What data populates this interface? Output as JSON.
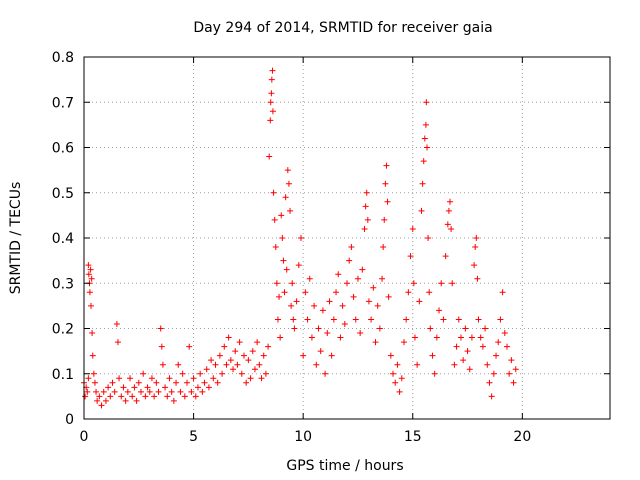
{
  "chart_data": {
    "type": "scatter",
    "title": "Day 294 of 2014, SRMTID for receiver gaia",
    "xlabel": "GPS time / hours",
    "ylabel": "SRMTID / TECUs",
    "xlim": [
      0,
      24
    ],
    "ylim": [
      0,
      0.8
    ],
    "xticks": [
      0,
      5,
      10,
      15,
      20
    ],
    "yticks": [
      0,
      0.1,
      0.2,
      0.3,
      0.4,
      0.5,
      0.6,
      0.7,
      0.8
    ],
    "grid": true,
    "marker": "plus",
    "color": "#ff0000",
    "series": [
      {
        "name": "SRMTID",
        "points": [
          [
            0.0,
            0.08
          ],
          [
            0.05,
            0.05
          ],
          [
            0.1,
            0.07
          ],
          [
            0.15,
            0.06
          ],
          [
            0.2,
            0.09
          ],
          [
            0.2,
            0.34
          ],
          [
            0.22,
            0.32
          ],
          [
            0.25,
            0.3
          ],
          [
            0.27,
            0.28
          ],
          [
            0.3,
            0.33
          ],
          [
            0.32,
            0.25
          ],
          [
            0.35,
            0.31
          ],
          [
            0.37,
            0.19
          ],
          [
            0.4,
            0.14
          ],
          [
            0.45,
            0.1
          ],
          [
            0.5,
            0.08
          ],
          [
            0.55,
            0.06
          ],
          [
            0.6,
            0.04
          ],
          [
            0.7,
            0.05
          ],
          [
            0.8,
            0.03
          ],
          [
            0.9,
            0.06
          ],
          [
            1.0,
            0.04
          ],
          [
            1.1,
            0.07
          ],
          [
            1.2,
            0.05
          ],
          [
            1.3,
            0.08
          ],
          [
            1.4,
            0.06
          ],
          [
            1.5,
            0.21
          ],
          [
            1.55,
            0.17
          ],
          [
            1.6,
            0.09
          ],
          [
            1.7,
            0.05
          ],
          [
            1.8,
            0.07
          ],
          [
            1.9,
            0.04
          ],
          [
            2.0,
            0.06
          ],
          [
            2.1,
            0.09
          ],
          [
            2.2,
            0.05
          ],
          [
            2.3,
            0.07
          ],
          [
            2.4,
            0.04
          ],
          [
            2.5,
            0.08
          ],
          [
            2.6,
            0.06
          ],
          [
            2.7,
            0.1
          ],
          [
            2.8,
            0.05
          ],
          [
            2.9,
            0.07
          ],
          [
            3.0,
            0.06
          ],
          [
            3.1,
            0.09
          ],
          [
            3.2,
            0.05
          ],
          [
            3.3,
            0.08
          ],
          [
            3.4,
            0.06
          ],
          [
            3.5,
            0.2
          ],
          [
            3.55,
            0.16
          ],
          [
            3.6,
            0.12
          ],
          [
            3.7,
            0.07
          ],
          [
            3.8,
            0.05
          ],
          [
            3.9,
            0.09
          ],
          [
            4.0,
            0.06
          ],
          [
            4.1,
            0.04
          ],
          [
            4.2,
            0.08
          ],
          [
            4.3,
            0.12
          ],
          [
            4.4,
            0.06
          ],
          [
            4.5,
            0.1
          ],
          [
            4.6,
            0.05
          ],
          [
            4.7,
            0.08
          ],
          [
            4.8,
            0.16
          ],
          [
            4.9,
            0.06
          ],
          [
            5.0,
            0.09
          ],
          [
            5.1,
            0.05
          ],
          [
            5.2,
            0.07
          ],
          [
            5.3,
            0.1
          ],
          [
            5.4,
            0.06
          ],
          [
            5.5,
            0.08
          ],
          [
            5.6,
            0.11
          ],
          [
            5.7,
            0.07
          ],
          [
            5.8,
            0.13
          ],
          [
            5.9,
            0.09
          ],
          [
            6.0,
            0.12
          ],
          [
            6.1,
            0.08
          ],
          [
            6.2,
            0.14
          ],
          [
            6.3,
            0.1
          ],
          [
            6.4,
            0.16
          ],
          [
            6.5,
            0.12
          ],
          [
            6.6,
            0.18
          ],
          [
            6.7,
            0.13
          ],
          [
            6.8,
            0.11
          ],
          [
            6.9,
            0.15
          ],
          [
            7.0,
            0.12
          ],
          [
            7.1,
            0.17
          ],
          [
            7.2,
            0.1
          ],
          [
            7.3,
            0.14
          ],
          [
            7.4,
            0.08
          ],
          [
            7.5,
            0.13
          ],
          [
            7.6,
            0.09
          ],
          [
            7.7,
            0.15
          ],
          [
            7.8,
            0.11
          ],
          [
            7.9,
            0.17
          ],
          [
            8.0,
            0.12
          ],
          [
            8.1,
            0.09
          ],
          [
            8.2,
            0.14
          ],
          [
            8.3,
            0.1
          ],
          [
            8.4,
            0.16
          ],
          [
            8.45,
            0.58
          ],
          [
            8.5,
            0.66
          ],
          [
            8.52,
            0.7
          ],
          [
            8.55,
            0.72
          ],
          [
            8.57,
            0.75
          ],
          [
            8.6,
            0.77
          ],
          [
            8.62,
            0.68
          ],
          [
            8.65,
            0.5
          ],
          [
            8.7,
            0.44
          ],
          [
            8.75,
            0.38
          ],
          [
            8.8,
            0.3
          ],
          [
            8.85,
            0.22
          ],
          [
            8.9,
            0.27
          ],
          [
            8.95,
            0.18
          ],
          [
            9.0,
            0.45
          ],
          [
            9.05,
            0.4
          ],
          [
            9.1,
            0.35
          ],
          [
            9.15,
            0.28
          ],
          [
            9.2,
            0.49
          ],
          [
            9.25,
            0.33
          ],
          [
            9.3,
            0.55
          ],
          [
            9.35,
            0.52
          ],
          [
            9.4,
            0.46
          ],
          [
            9.45,
            0.25
          ],
          [
            9.5,
            0.3
          ],
          [
            9.55,
            0.22
          ],
          [
            9.6,
            0.2
          ],
          [
            9.7,
            0.26
          ],
          [
            9.8,
            0.34
          ],
          [
            9.9,
            0.4
          ],
          [
            10.0,
            0.14
          ],
          [
            10.1,
            0.28
          ],
          [
            10.2,
            0.22
          ],
          [
            10.3,
            0.31
          ],
          [
            10.4,
            0.18
          ],
          [
            10.5,
            0.25
          ],
          [
            10.6,
            0.12
          ],
          [
            10.7,
            0.2
          ],
          [
            10.8,
            0.15
          ],
          [
            10.9,
            0.24
          ],
          [
            11.0,
            0.1
          ],
          [
            11.1,
            0.19
          ],
          [
            11.2,
            0.26
          ],
          [
            11.3,
            0.14
          ],
          [
            11.4,
            0.22
          ],
          [
            11.5,
            0.28
          ],
          [
            11.6,
            0.32
          ],
          [
            11.7,
            0.18
          ],
          [
            11.8,
            0.25
          ],
          [
            11.9,
            0.21
          ],
          [
            12.0,
            0.3
          ],
          [
            12.1,
            0.35
          ],
          [
            12.2,
            0.38
          ],
          [
            12.3,
            0.27
          ],
          [
            12.4,
            0.22
          ],
          [
            12.5,
            0.31
          ],
          [
            12.6,
            0.19
          ],
          [
            12.7,
            0.33
          ],
          [
            12.8,
            0.42
          ],
          [
            12.85,
            0.47
          ],
          [
            12.9,
            0.5
          ],
          [
            12.95,
            0.44
          ],
          [
            13.0,
            0.26
          ],
          [
            13.1,
            0.22
          ],
          [
            13.2,
            0.29
          ],
          [
            13.3,
            0.17
          ],
          [
            13.4,
            0.25
          ],
          [
            13.5,
            0.2
          ],
          [
            13.6,
            0.31
          ],
          [
            13.65,
            0.38
          ],
          [
            13.7,
            0.44
          ],
          [
            13.75,
            0.52
          ],
          [
            13.8,
            0.56
          ],
          [
            13.85,
            0.48
          ],
          [
            13.9,
            0.27
          ],
          [
            14.0,
            0.14
          ],
          [
            14.1,
            0.1
          ],
          [
            14.2,
            0.08
          ],
          [
            14.3,
            0.12
          ],
          [
            14.4,
            0.06
          ],
          [
            14.5,
            0.09
          ],
          [
            14.6,
            0.17
          ],
          [
            14.7,
            0.22
          ],
          [
            14.8,
            0.28
          ],
          [
            14.9,
            0.36
          ],
          [
            15.0,
            0.42
          ],
          [
            15.05,
            0.3
          ],
          [
            15.1,
            0.18
          ],
          [
            15.2,
            0.12
          ],
          [
            15.3,
            0.26
          ],
          [
            15.4,
            0.46
          ],
          [
            15.45,
            0.52
          ],
          [
            15.5,
            0.57
          ],
          [
            15.55,
            0.62
          ],
          [
            15.6,
            0.65
          ],
          [
            15.62,
            0.7
          ],
          [
            15.65,
            0.6
          ],
          [
            15.7,
            0.4
          ],
          [
            15.75,
            0.28
          ],
          [
            15.8,
            0.2
          ],
          [
            15.9,
            0.14
          ],
          [
            16.0,
            0.1
          ],
          [
            16.1,
            0.18
          ],
          [
            16.2,
            0.24
          ],
          [
            16.3,
            0.3
          ],
          [
            16.4,
            0.22
          ],
          [
            16.5,
            0.36
          ],
          [
            16.6,
            0.43
          ],
          [
            16.65,
            0.46
          ],
          [
            16.7,
            0.48
          ],
          [
            16.75,
            0.42
          ],
          [
            16.8,
            0.3
          ],
          [
            16.9,
            0.12
          ],
          [
            17.0,
            0.16
          ],
          [
            17.1,
            0.22
          ],
          [
            17.2,
            0.18
          ],
          [
            17.3,
            0.13
          ],
          [
            17.4,
            0.2
          ],
          [
            17.5,
            0.15
          ],
          [
            17.6,
            0.11
          ],
          [
            17.7,
            0.18
          ],
          [
            17.8,
            0.34
          ],
          [
            17.85,
            0.38
          ],
          [
            17.9,
            0.4
          ],
          [
            17.95,
            0.31
          ],
          [
            18.0,
            0.22
          ],
          [
            18.1,
            0.18
          ],
          [
            18.2,
            0.16
          ],
          [
            18.3,
            0.2
          ],
          [
            18.4,
            0.12
          ],
          [
            18.5,
            0.08
          ],
          [
            18.6,
            0.05
          ],
          [
            18.7,
            0.1
          ],
          [
            18.8,
            0.14
          ],
          [
            18.9,
            0.17
          ],
          [
            19.0,
            0.22
          ],
          [
            19.1,
            0.28
          ],
          [
            19.2,
            0.19
          ],
          [
            19.3,
            0.16
          ],
          [
            19.4,
            0.1
          ],
          [
            19.5,
            0.13
          ],
          [
            19.6,
            0.08
          ],
          [
            19.7,
            0.11
          ]
        ]
      }
    ]
  }
}
